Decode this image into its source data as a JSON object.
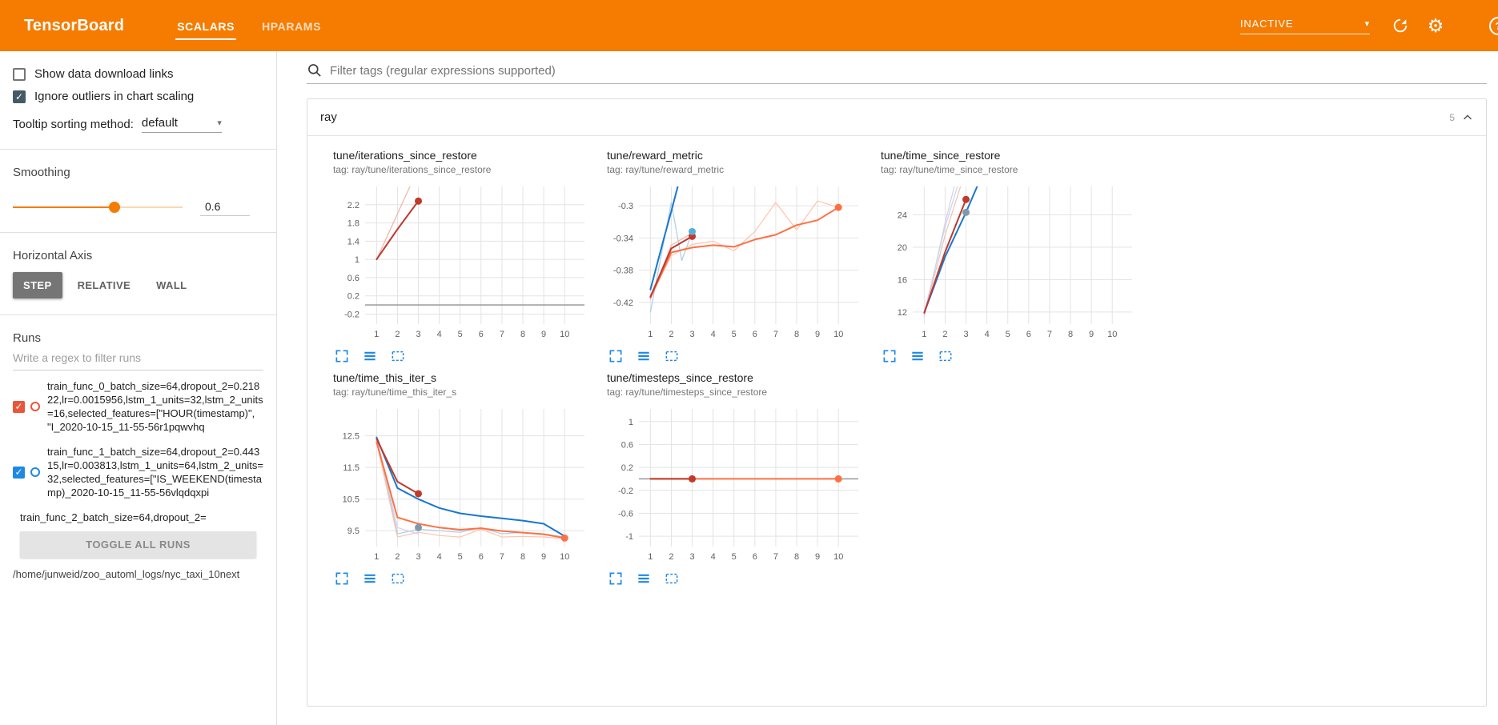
{
  "theme": {
    "accent": "#f57c00",
    "icon_blue": "#1e88e5",
    "grid": "#e3e3e3"
  },
  "header": {
    "title": "TensorBoard",
    "tabs": [
      {
        "label": "SCALARS",
        "active": true
      },
      {
        "label": "HPARAMS",
        "active": false
      }
    ],
    "status": "INACTIVE"
  },
  "sidebar": {
    "show_download_label": "Show data download links",
    "show_download_checked": false,
    "ignore_outliers_label": "Ignore outliers in chart scaling",
    "ignore_outliers_checked": true,
    "tooltip_label": "Tooltip sorting method:",
    "tooltip_value": "default",
    "smoothing_label": "Smoothing",
    "smoothing_value": "0.6",
    "smoothing_percent": 60,
    "axis_label": "Horizontal Axis",
    "axis_options": [
      "STEP",
      "RELATIVE",
      "WALL"
    ],
    "axis_selected": "STEP",
    "runs_label": "Runs",
    "runs_filter_placeholder": "Write a regex to filter runs",
    "runs": [
      {
        "label": "train_func_0_batch_size=64,dropout_2=0.21822,lr=0.0015956,lstm_1_units=32,lstm_2_units=16,selected_features=[\"HOUR(timestamp)\", \"I_2020-10-15_11-55-56r1pqwvhq",
        "checked": true,
        "color": "#e8563c"
      },
      {
        "label": "train_func_1_batch_size=64,dropout_2=0.44315,lr=0.003813,lstm_1_units=64,lstm_2_units=32,selected_features=[\"IS_WEEKEND(timestamp)_2020-10-15_11-55-56vlqdqxpi",
        "checked": true,
        "color": "#1e88e5"
      },
      {
        "label": "train_func_2_batch_size=64,dropout_2=",
        "checked": true,
        "color": null
      }
    ],
    "toggle_all_label": "TOGGLE ALL RUNS",
    "log_path": "/home/junweid/zoo_automl_logs/nyc_taxi_10next"
  },
  "main": {
    "filter_placeholder": "Filter tags (regular expressions supported)",
    "group_title": "ray",
    "group_count": "5"
  },
  "chart_data": [
    {
      "type": "line",
      "title": "tune/iterations_since_restore",
      "tag": "tag: ray/tune/iterations_since_restore",
      "xlim": [
        0.45,
        10.95
      ],
      "ylim": [
        -0.42,
        2.6
      ],
      "xticks": [
        1,
        2,
        3,
        4,
        5,
        6,
        7,
        8,
        9,
        10
      ],
      "yticks": [
        -0.2,
        0.2,
        0.6,
        1,
        1.4,
        1.8,
        2.2
      ],
      "zero_line": true,
      "series": [
        {
          "name": "train_func_1 (raw)",
          "color": "#b9d5ec",
          "width": 1.2,
          "points": [
            [
              1,
              1
            ],
            [
              2,
              2
            ],
            [
              3,
              3
            ]
          ]
        },
        {
          "name": "train_func_0 (raw)",
          "color": "#f3b7aa",
          "width": 1.2,
          "points": [
            [
              1,
              1
            ],
            [
              2,
              2
            ],
            [
              3,
              3
            ]
          ]
        },
        {
          "name": "train_func_0 (smoothed)",
          "color": "#c0392b",
          "width": 2,
          "points": [
            [
              1,
              1
            ],
            [
              2,
              1.66
            ],
            [
              3,
              2.28
            ]
          ],
          "end_marker": true
        }
      ],
      "markers": []
    },
    {
      "type": "line",
      "title": "tune/reward_metric",
      "tag": "tag: ray/tune/reward_metric",
      "xlim": [
        0.45,
        10.95
      ],
      "ylim": [
        -0.447,
        -0.276
      ],
      "xticks": [
        1,
        2,
        3,
        4,
        5,
        6,
        7,
        8,
        9,
        10
      ],
      "yticks": [
        -0.42,
        -0.38,
        -0.34,
        -0.3
      ],
      "zero_line": false,
      "series": [
        {
          "name": "train_func_1 (raw)",
          "color": "#a8cfe8",
          "width": 1.2,
          "points": [
            [
              1,
              -0.432
            ],
            [
              2,
              -0.296
            ],
            [
              2.5,
              -0.368
            ],
            [
              3,
              -0.333
            ]
          ]
        },
        {
          "name": "train_func_2 (raw)",
          "color": "#ffc3ad",
          "width": 1.2,
          "points": [
            [
              1,
              -0.414
            ],
            [
              2,
              -0.362
            ],
            [
              3,
              -0.348
            ],
            [
              4,
              -0.344
            ],
            [
              5,
              -0.356
            ],
            [
              6,
              -0.332
            ],
            [
              7,
              -0.296
            ],
            [
              8,
              -0.33
            ],
            [
              9,
              -0.294
            ],
            [
              10,
              -0.302
            ]
          ]
        },
        {
          "name": "train_func_0 (raw)",
          "color": "#f3b7aa",
          "width": 1.2,
          "points": [
            [
              1,
              -0.416
            ],
            [
              2,
              -0.349
            ],
            [
              3,
              -0.334
            ]
          ]
        },
        {
          "name": "train_func_1 (smoothed)",
          "color": "#1976d2",
          "width": 2,
          "points": [
            [
              1,
              -0.404
            ],
            [
              1.6,
              -0.345
            ],
            [
              2,
              -0.307
            ],
            [
              2.35,
              -0.272
            ]
          ]
        },
        {
          "name": "train_func_2 (smoothed)",
          "color": "#ff7043",
          "width": 2,
          "points": [
            [
              1,
              -0.414
            ],
            [
              2,
              -0.358
            ],
            [
              3,
              -0.352
            ],
            [
              4,
              -0.349
            ],
            [
              5,
              -0.351
            ],
            [
              6,
              -0.342
            ],
            [
              7,
              -0.336
            ],
            [
              8,
              -0.324
            ],
            [
              9,
              -0.318
            ],
            [
              10,
              -0.302
            ]
          ],
          "end_marker": true
        },
        {
          "name": "train_func_0 (smoothed)",
          "color": "#c0392b",
          "width": 2,
          "points": [
            [
              1,
              -0.413
            ],
            [
              2,
              -0.353
            ],
            [
              3,
              -0.338
            ]
          ],
          "end_marker": true
        }
      ],
      "markers": [
        {
          "x": 3,
          "y": -0.332,
          "color": "#54b2d8"
        }
      ]
    },
    {
      "type": "line",
      "title": "tune/time_since_restore",
      "tag": "tag: ray/tune/time_since_restore",
      "xlim": [
        0.45,
        10.95
      ],
      "ylim": [
        10.5,
        27.5
      ],
      "xticks": [
        1,
        2,
        3,
        4,
        5,
        6,
        7,
        8,
        9,
        10
      ],
      "yticks": [
        12,
        16,
        20,
        24
      ],
      "zero_line": false,
      "series": [
        {
          "name": "raw a",
          "color": "#d5d0e8",
          "width": 1.2,
          "points": [
            [
              1,
              11.4
            ],
            [
              2,
              23
            ],
            [
              2.45,
              27.6
            ]
          ]
        },
        {
          "name": "raw b",
          "color": "#f3c0b5",
          "width": 1.2,
          "points": [
            [
              1,
              11.7
            ],
            [
              2,
              21.5
            ],
            [
              2.75,
              27.6
            ]
          ]
        },
        {
          "name": "raw c",
          "color": "#c4d8ec",
          "width": 1.2,
          "points": [
            [
              1,
              11.9
            ],
            [
              2,
              22.5
            ],
            [
              2.6,
              27.6
            ]
          ]
        },
        {
          "name": "train_func_1 (smoothed)",
          "color": "#1976d2",
          "width": 2,
          "points": [
            [
              1,
              11.9
            ],
            [
              2,
              18.8
            ],
            [
              3,
              24.3
            ],
            [
              3.55,
              27.6
            ]
          ]
        },
        {
          "name": "train_func_0 (smoothed)",
          "color": "#c0392b",
          "width": 2,
          "points": [
            [
              1,
              11.9
            ],
            [
              2,
              19.4
            ],
            [
              3,
              25.9
            ]
          ],
          "end_marker": true
        }
      ],
      "markers": [
        {
          "x": 3,
          "y": 24.3,
          "color": "#7f98ab"
        }
      ]
    },
    {
      "type": "line",
      "title": "tune/time_this_iter_s",
      "tag": "tag: ray/tune/time_this_iter_s",
      "xlim": [
        0.45,
        10.95
      ],
      "ylim": [
        9.0,
        13.35
      ],
      "xticks": [
        1,
        2,
        3,
        4,
        5,
        6,
        7,
        8,
        9,
        10
      ],
      "yticks": [
        9.5,
        10.5,
        11.5,
        12.5
      ],
      "zero_line": false,
      "series": [
        {
          "name": "train_func_1 (raw)",
          "color": "#a8cfe8",
          "width": 1.2,
          "points": [
            [
              1,
              12.45
            ],
            [
              2,
              9.4
            ],
            [
              3,
              9.55
            ],
            [
              4,
              9.5
            ],
            [
              5,
              9.45
            ],
            [
              6,
              9.6
            ],
            [
              7,
              9.4
            ],
            [
              8,
              9.45
            ],
            [
              9,
              9.4
            ],
            [
              10,
              9.3
            ]
          ]
        },
        {
          "name": "train_func_2 (raw)",
          "color": "#ffc3ad",
          "width": 1.2,
          "points": [
            [
              1,
              12.3
            ],
            [
              2,
              9.3
            ],
            [
              3,
              9.45
            ],
            [
              4,
              9.35
            ],
            [
              5,
              9.3
            ],
            [
              6,
              9.55
            ],
            [
              7,
              9.3
            ],
            [
              8,
              9.32
            ],
            [
              9,
              9.3
            ],
            [
              10,
              9.25
            ]
          ]
        },
        {
          "name": "raw c",
          "color": "#d5d0e8",
          "width": 1.2,
          "points": [
            [
              1,
              12.45
            ],
            [
              2,
              9.6
            ],
            [
              3,
              9.4
            ]
          ]
        },
        {
          "name": "train_func_1 (smoothed)",
          "color": "#1976d2",
          "width": 2,
          "points": [
            [
              1,
              12.45
            ],
            [
              2,
              10.85
            ],
            [
              3,
              10.5
            ],
            [
              4,
              10.22
            ],
            [
              5,
              10.05
            ],
            [
              6,
              9.96
            ],
            [
              7,
              9.89
            ],
            [
              8,
              9.82
            ],
            [
              9,
              9.72
            ],
            [
              10,
              9.33
            ]
          ]
        },
        {
          "name": "train_func_2 (smoothed)",
          "color": "#ff7043",
          "width": 2,
          "points": [
            [
              1,
              12.3
            ],
            [
              2,
              9.92
            ],
            [
              3,
              9.72
            ],
            [
              4,
              9.6
            ],
            [
              5,
              9.53
            ],
            [
              6,
              9.58
            ],
            [
              7,
              9.49
            ],
            [
              8,
              9.44
            ],
            [
              9,
              9.39
            ],
            [
              10,
              9.27
            ]
          ],
          "end_marker": true
        },
        {
          "name": "train_func_0 (smoothed)",
          "color": "#c0392b",
          "width": 2,
          "points": [
            [
              1,
              12.4
            ],
            [
              2,
              11.05
            ],
            [
              3,
              10.67
            ]
          ],
          "end_marker": true
        }
      ],
      "markers": [
        {
          "x": 3,
          "y": 9.6,
          "color": "#7f98ab"
        }
      ]
    },
    {
      "type": "line",
      "title": "tune/timesteps_since_restore",
      "tag": "tag: ray/tune/timesteps_since_restore",
      "xlim": [
        0.45,
        10.95
      ],
      "ylim": [
        -1.18,
        1.22
      ],
      "xticks": [
        1,
        2,
        3,
        4,
        5,
        6,
        7,
        8,
        9,
        10
      ],
      "yticks": [
        -1,
        -0.6,
        -0.2,
        0.2,
        0.6,
        1
      ],
      "zero_line": true,
      "series": [
        {
          "name": "train_func_2 (smoothed)",
          "color": "#ff7043",
          "width": 2,
          "points": [
            [
              1,
              0
            ],
            [
              10,
              0
            ]
          ],
          "end_marker": true
        },
        {
          "name": "train_func_0 (smoothed)",
          "color": "#c0392b",
          "width": 2,
          "points": [
            [
              1,
              0
            ],
            [
              3,
              0
            ]
          ],
          "end_marker": true
        }
      ],
      "markers": []
    }
  ]
}
